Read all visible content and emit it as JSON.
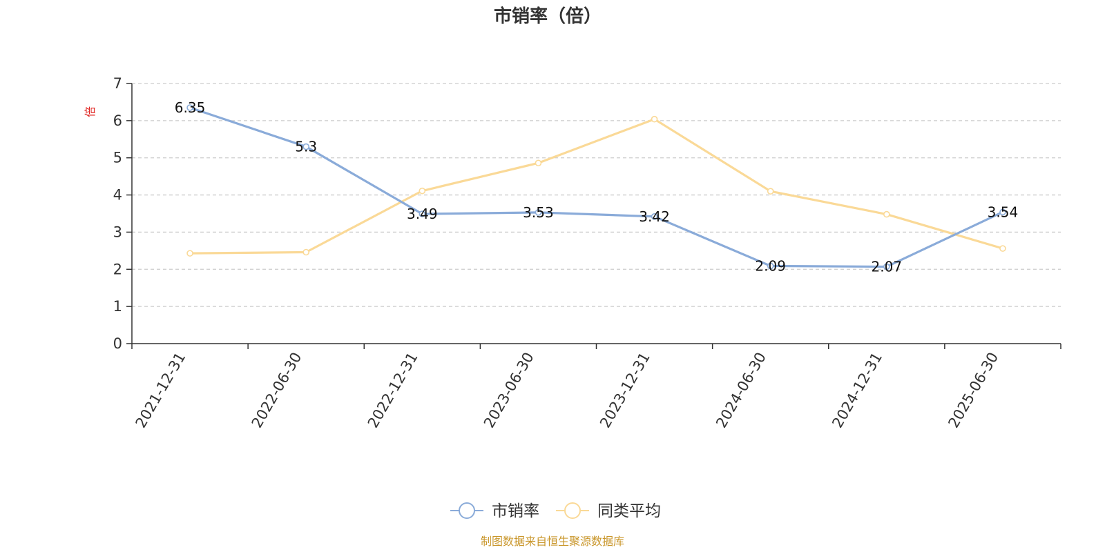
{
  "chart_data": {
    "type": "line",
    "title": "市销率（倍）",
    "y_unit": "倍",
    "categories": [
      "2021-12-31",
      "2022-06-30",
      "2022-12-31",
      "2023-06-30",
      "2023-12-31",
      "2024-06-30",
      "2024-12-31",
      "2025-06-30"
    ],
    "ylim": [
      0,
      7
    ],
    "yticks": [
      0,
      1,
      2,
      3,
      4,
      5,
      6,
      7
    ],
    "grid": true,
    "legend_position": "bottom-center",
    "series": [
      {
        "name": "市销率",
        "color": "#8aabd9",
        "values": [
          6.35,
          5.3,
          3.49,
          3.53,
          3.42,
          2.09,
          2.07,
          3.54
        ],
        "labels": [
          "6.35",
          "5.3",
          "3.49",
          "3.53",
          "3.42",
          "2.09",
          "2.07",
          "3.54"
        ]
      },
      {
        "name": "同类平均",
        "color": "#fad997",
        "values": [
          2.43,
          2.46,
          4.11,
          4.86,
          6.04,
          4.1,
          3.48,
          2.56
        ]
      }
    ]
  },
  "source_text": "制图数据来自恒生聚源数据库",
  "colors": {
    "title": "#333333",
    "unit_label": "#e0221f",
    "axis": "#333333",
    "grid": "#cccccc",
    "source": "#c9962a"
  }
}
